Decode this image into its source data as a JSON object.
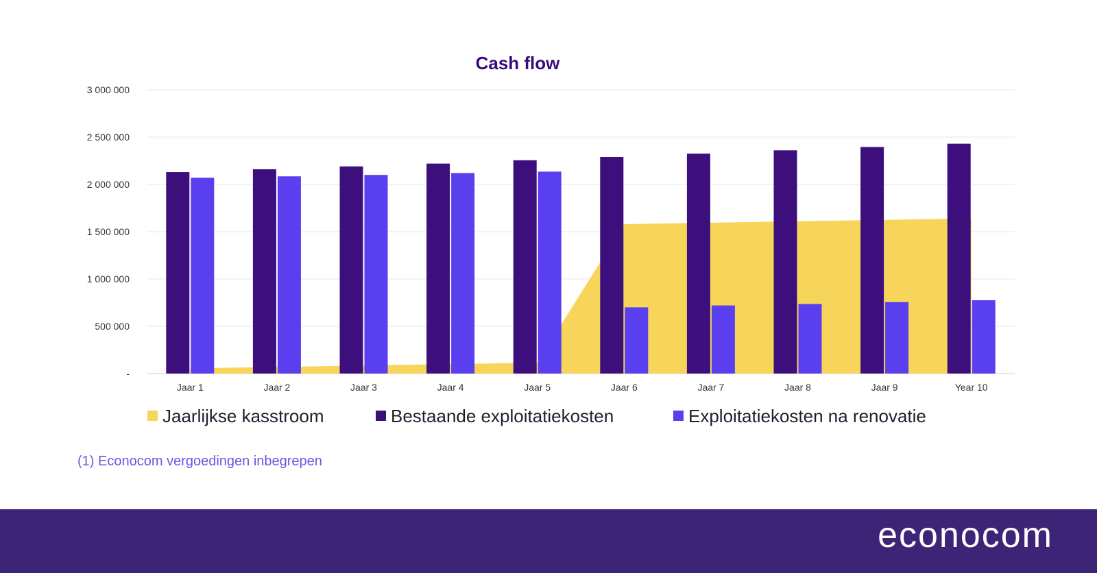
{
  "chart_data": {
    "type": "bar",
    "title": "Cash flow",
    "categories": [
      "Jaar 1",
      "Jaar 2",
      "Jaar 3",
      "Jaar 4",
      "Jaar 5",
      "Jaar 6",
      "Jaar 7",
      "Jaar 8",
      "Jaar 9",
      "Year 10"
    ],
    "y_ticks": [
      "-",
      "500 000",
      "1 000 000",
      "1 500 000",
      "2 000 000",
      "2 500 000",
      "3 000 000"
    ],
    "ylim": [
      0,
      3000000
    ],
    "grid": true,
    "legend_position": "bottom",
    "series": [
      {
        "name": "Jaarlijkse kasstroom",
        "type": "area",
        "color": "#f7d55a",
        "values": [
          55000,
          70000,
          85000,
          100000,
          115000,
          1580000,
          1595000,
          1610000,
          1625000,
          1640000
        ]
      },
      {
        "name": "Bestaande exploitatiekosten",
        "type": "bar",
        "color": "#3d0f7d",
        "values": [
          2130000,
          2160000,
          2190000,
          2220000,
          2255000,
          2290000,
          2325000,
          2360000,
          2395000,
          2430000
        ]
      },
      {
        "name": "Exploitatiekosten na renovatie",
        "type": "bar",
        "color": "#5a3fee",
        "values": [
          2070000,
          2085000,
          2100000,
          2120000,
          2135000,
          700000,
          720000,
          735000,
          755000,
          775000
        ]
      }
    ]
  },
  "footnote": "(1) Econocom vergoedingen inbegrepen",
  "footer": {
    "logo_text": "econocom",
    "background": "#3e2476"
  }
}
